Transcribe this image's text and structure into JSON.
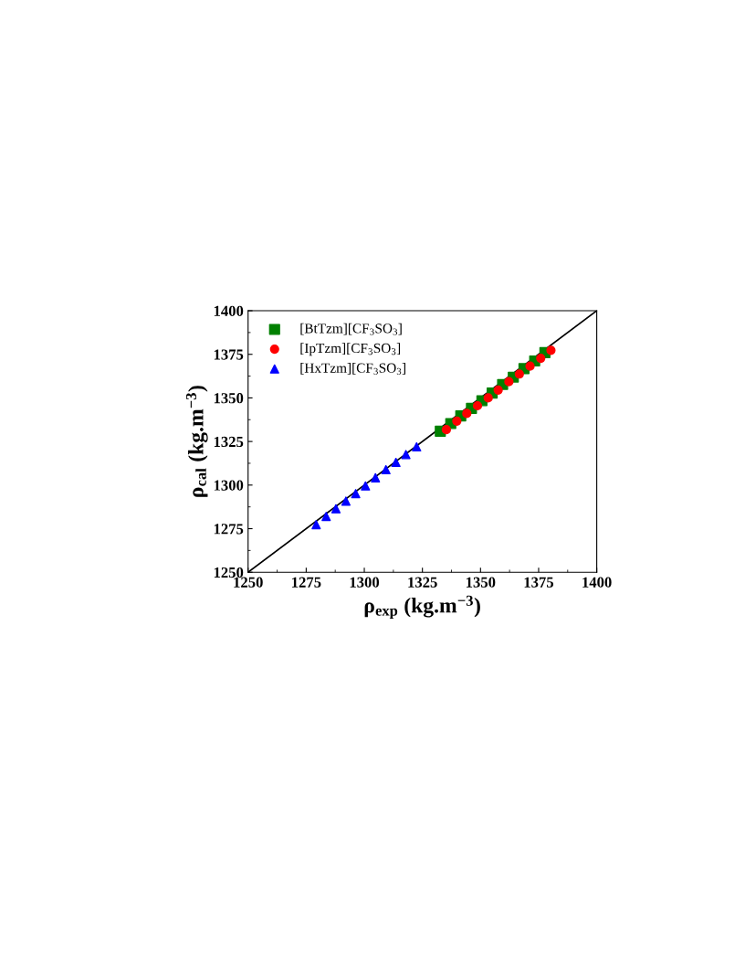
{
  "chart_data": {
    "type": "scatter",
    "xlabel": "ρ$_{exp}$ (kg.m$^{−3}$)",
    "ylabel": "ρ$_{cal}$ (kg.m$^{−3}$)",
    "xlim": [
      1250,
      1400
    ],
    "ylim": [
      1250,
      1400
    ],
    "xticks": [
      1250,
      1275,
      1300,
      1325,
      1350,
      1375,
      1400
    ],
    "yticks": [
      1250,
      1275,
      1300,
      1325,
      1350,
      1375,
      1400
    ],
    "grid": false,
    "legend": "top left",
    "series": [
      {
        "name": "[BtTzm][CF$_{3}$SO$_{3}$]",
        "color": "#008000",
        "marker": "square",
        "x": [
          1332.7,
          1337.2,
          1341.5,
          1346.1,
          1350.6,
          1355.0,
          1359.5,
          1364.1,
          1368.7,
          1373.3,
          1377.7
        ],
        "values": [
          1330.9,
          1335.3,
          1339.7,
          1344.0,
          1348.4,
          1352.8,
          1357.7,
          1361.9,
          1366.8,
          1371.2,
          1376.0
        ]
      },
      {
        "name": "[IpTzm][CF$_{3}$SO$_{3}$]",
        "color": "#ff0000",
        "marker": "circle",
        "x": [
          1335.3,
          1339.8,
          1344.1,
          1348.7,
          1353.3,
          1357.6,
          1362.2,
          1366.7,
          1371.3,
          1375.9,
          1380.3
        ],
        "values": [
          1331.8,
          1336.7,
          1341.1,
          1345.5,
          1350.0,
          1354.5,
          1359.3,
          1363.7,
          1368.2,
          1372.7,
          1377.3
        ]
      },
      {
        "name": "[HxTzm][CF$_{3}$SO$_{3}$]",
        "color": "#0000ff",
        "marker": "triangle",
        "x": [
          1279.3,
          1283.6,
          1287.8,
          1292.1,
          1296.3,
          1300.5,
          1304.8,
          1309.3,
          1313.6,
          1317.9,
          1322.5
        ],
        "values": [
          1277.3,
          1282.0,
          1286.4,
          1290.8,
          1295.1,
          1299.5,
          1304.2,
          1308.8,
          1313.0,
          1317.5,
          1321.9
        ]
      },
      {
        "type": "line",
        "color": "#000000",
        "line_style": "solid",
        "marker": "none",
        "x": [
          1250,
          1400
        ],
        "values": [
          1250,
          1400
        ]
      }
    ]
  }
}
